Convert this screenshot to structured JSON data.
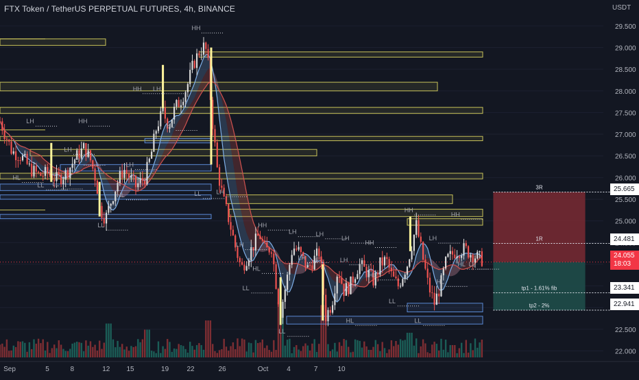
{
  "header": {
    "title": "FTX Token / TetherUS PERPETUAL FUTURES, 4h, BINANCE",
    "unit": "USDT"
  },
  "colors": {
    "background": "#131722",
    "up": "#26a69a",
    "down": "#ef5350",
    "supply_zone": "#c9c35a",
    "demand_zone": "#5b8ad6",
    "risk_zone": "#7a2a33",
    "reward_zone": "#1d4a48",
    "fast_ribbon": "#7fb0e8",
    "slow_ribbon": "#d0524f"
  },
  "price_tags": {
    "r3": "25.665",
    "r1": "24.481",
    "live_price": "24.055",
    "live_countdown": "18:03",
    "tp1": "23.341",
    "tp2": "22.941"
  },
  "chart_data": {
    "type": "candlestick",
    "x_axis": {
      "ticks": [
        "Sep",
        "5",
        "8",
        "12",
        "15",
        "19",
        "22",
        "26",
        "Oct",
        "4",
        "7",
        "10"
      ]
    },
    "y_axis": {
      "ticks": [
        "22.000",
        "22.500",
        "23.000",
        "23.500",
        "24.000",
        "24.500",
        "25.000",
        "25.500",
        "26.000",
        "26.500",
        "27.000",
        "27.500",
        "28.000",
        "28.500",
        "29.000",
        "29.500"
      ],
      "range": [
        21.85,
        29.75
      ]
    },
    "close_path": [
      [
        0,
        27.3
      ],
      [
        8,
        26.6
      ],
      [
        14,
        26.5
      ],
      [
        20,
        26.2
      ],
      [
        26,
        26.05
      ],
      [
        32,
        26.1
      ],
      [
        38,
        25.95
      ],
      [
        44,
        26.1
      ],
      [
        50,
        26.45
      ],
      [
        56,
        26.7
      ],
      [
        60,
        26.4
      ],
      [
        64,
        25.9
      ],
      [
        66,
        25.3
      ],
      [
        70,
        25.05
      ],
      [
        74,
        25.5
      ],
      [
        78,
        25.9
      ],
      [
        82,
        26.2
      ],
      [
        86,
        26.0
      ],
      [
        90,
        25.8
      ],
      [
        96,
        26.0
      ],
      [
        100,
        26.5
      ],
      [
        104,
        27.2
      ],
      [
        108,
        27.5
      ],
      [
        112,
        27.2
      ],
      [
        116,
        27.6
      ],
      [
        120,
        27.8
      ],
      [
        124,
        28.1
      ],
      [
        128,
        28.6
      ],
      [
        132,
        28.9
      ],
      [
        136,
        29.05
      ],
      [
        138,
        28.6
      ],
      [
        140,
        27.6
      ],
      [
        144,
        26.2
      ],
      [
        148,
        25.5
      ],
      [
        152,
        25.0
      ],
      [
        156,
        24.4
      ],
      [
        160,
        23.9
      ],
      [
        166,
        24.3
      ],
      [
        172,
        24.7
      ],
      [
        176,
        24.3
      ],
      [
        180,
        24.4
      ],
      [
        184,
        23.3
      ],
      [
        186,
        22.9
      ],
      [
        190,
        23.6
      ],
      [
        194,
        24.4
      ],
      [
        198,
        24.3
      ],
      [
        204,
        23.9
      ],
      [
        208,
        24.1
      ],
      [
        212,
        24.3
      ],
      [
        214,
        23.5
      ],
      [
        216,
        22.8
      ],
      [
        220,
        23.1
      ],
      [
        224,
        23.9
      ],
      [
        228,
        23.4
      ],
      [
        232,
        23.5
      ],
      [
        238,
        24.0
      ],
      [
        244,
        23.8
      ],
      [
        248,
        23.6
      ],
      [
        252,
        24.0
      ],
      [
        256,
        24.1
      ],
      [
        260,
        23.7
      ],
      [
        264,
        23.5
      ],
      [
        270,
        24.0
      ],
      [
        276,
        24.9
      ],
      [
        280,
        24.2
      ],
      [
        284,
        23.5
      ],
      [
        288,
        23.1
      ],
      [
        292,
        23.5
      ],
      [
        296,
        24.1
      ],
      [
        302,
        24.3
      ],
      [
        308,
        24.35
      ],
      [
        314,
        24.2
      ],
      [
        320,
        24.1
      ]
    ],
    "volume_spikes": [
      [
        72,
        0.55
      ],
      [
        98,
        0.45
      ],
      [
        138,
        0.6
      ],
      [
        186,
        0.9
      ],
      [
        214,
        0.85
      ],
      [
        272,
        0.4
      ],
      [
        300,
        0.2
      ]
    ],
    "supply_zones": [
      {
        "x0": 0,
        "x1": 70,
        "y0": 29.05,
        "y1": 29.2
      },
      {
        "x0": 132,
        "x1": 320,
        "y0": 28.78,
        "y1": 28.9
      },
      {
        "x0": 0,
        "x1": 290,
        "y0": 28.0,
        "y1": 28.2
      },
      {
        "x0": 0,
        "x1": 320,
        "y0": 27.48,
        "y1": 27.62
      },
      {
        "x0": 0,
        "x1": 320,
        "y0": 26.85,
        "y1": 26.95
      },
      {
        "x0": 20,
        "x1": 210,
        "y0": 26.5,
        "y1": 26.65
      },
      {
        "x0": 0,
        "x1": 320,
        "y0": 25.97,
        "y1": 26.1
      },
      {
        "x0": 150,
        "x1": 300,
        "y0": 25.4,
        "y1": 25.6
      },
      {
        "x0": 152,
        "x1": 320,
        "y0": 25.1,
        "y1": 25.27
      },
      {
        "x0": 270,
        "x1": 320,
        "y0": 24.9,
        "y1": 25.05
      }
    ],
    "demand_zones": [
      {
        "x0": 96,
        "x1": 140,
        "y0": 26.8,
        "y1": 26.9
      },
      {
        "x0": 40,
        "x1": 140,
        "y0": 26.15,
        "y1": 26.3
      },
      {
        "x0": 0,
        "x1": 140,
        "y0": 25.7,
        "y1": 25.85
      },
      {
        "x0": 0,
        "x1": 140,
        "y0": 25.5,
        "y1": 25.6
      },
      {
        "x0": 0,
        "x1": 140,
        "y0": 25.05,
        "y1": 25.15
      },
      {
        "x0": 270,
        "x1": 320,
        "y0": 22.9,
        "y1": 23.1
      },
      {
        "x0": 190,
        "x1": 320,
        "y0": 22.62,
        "y1": 22.8
      }
    ],
    "swing_labels": [
      {
        "text": "LH",
        "x": 20,
        "y": 27.25
      },
      {
        "text": "HL",
        "x": 11,
        "y": 25.95
      },
      {
        "text": "LL",
        "x": 27,
        "y": 25.78
      },
      {
        "text": "LH",
        "x": 45,
        "y": 26.6
      },
      {
        "text": "LH",
        "x": 52,
        "y": 26.35
      },
      {
        "text": "LL",
        "x": 37,
        "y": 25.8
      },
      {
        "text": "HH",
        "x": 55,
        "y": 27.25
      },
      {
        "text": "LL",
        "x": 67,
        "y": 24.85
      },
      {
        "text": "HL",
        "x": 80,
        "y": 25.55
      },
      {
        "text": "LH",
        "x": 86,
        "y": 26.25
      },
      {
        "text": "HH",
        "x": 91,
        "y": 28.0
      },
      {
        "text": "LH",
        "x": 104,
        "y": 28.0
      },
      {
        "text": "HL",
        "x": 113,
        "y": 27.15
      },
      {
        "text": "HH",
        "x": 130,
        "y": 29.4
      },
      {
        "text": "LL",
        "x": 131,
        "y": 25.58
      },
      {
        "text": "LH",
        "x": 146,
        "y": 25.62
      },
      {
        "text": "HH",
        "x": 174,
        "y": 24.85
      },
      {
        "text": "LH",
        "x": 159,
        "y": 24.4
      },
      {
        "text": "HL",
        "x": 170,
        "y": 23.85
      },
      {
        "text": "LL",
        "x": 163,
        "y": 23.4
      },
      {
        "text": "LH",
        "x": 194,
        "y": 24.7
      },
      {
        "text": "LH",
        "x": 212,
        "y": 24.65
      },
      {
        "text": "HH",
        "x": 245,
        "y": 24.45
      },
      {
        "text": "LH",
        "x": 229,
        "y": 24.55
      },
      {
        "text": "LH",
        "x": 200,
        "y": 24.1
      },
      {
        "text": "LH",
        "x": 228,
        "y": 24.05
      },
      {
        "text": "HL",
        "x": 232,
        "y": 22.65
      },
      {
        "text": "LL",
        "x": 187,
        "y": 22.4
      },
      {
        "text": "HL",
        "x": 247,
        "y": 23.7
      },
      {
        "text": "LL",
        "x": 260,
        "y": 23.1
      },
      {
        "text": "HH",
        "x": 271,
        "y": 25.2
      },
      {
        "text": "LH",
        "x": 287,
        "y": 24.55
      },
      {
        "text": "HH",
        "x": 302,
        "y": 25.1
      },
      {
        "text": "HL",
        "x": 292,
        "y": 23.55
      },
      {
        "text": "LL",
        "x": 277,
        "y": 22.65
      },
      {
        "text": "HL",
        "x": 306,
        "y": 23.95
      },
      {
        "text": "LL",
        "x": 313,
        "y": 23.95
      }
    ],
    "position": {
      "x0": 327,
      "x1": 388,
      "target_3r": 25.665,
      "target_1r": 24.481,
      "entry": 24.05,
      "stop": 22.941,
      "labels": [
        {
          "text": "3R",
          "y": 25.665
        },
        {
          "text": "1R",
          "y": 24.481
        },
        {
          "text": "tp1 - 1.61% fib",
          "y": 23.341
        },
        {
          "text": "tp2 - 2%",
          "y": 22.941
        }
      ]
    },
    "x_domain": [
      0,
      400
    ],
    "annotation_horizontals": [
      29.2,
      27.1,
      25.25
    ]
  }
}
